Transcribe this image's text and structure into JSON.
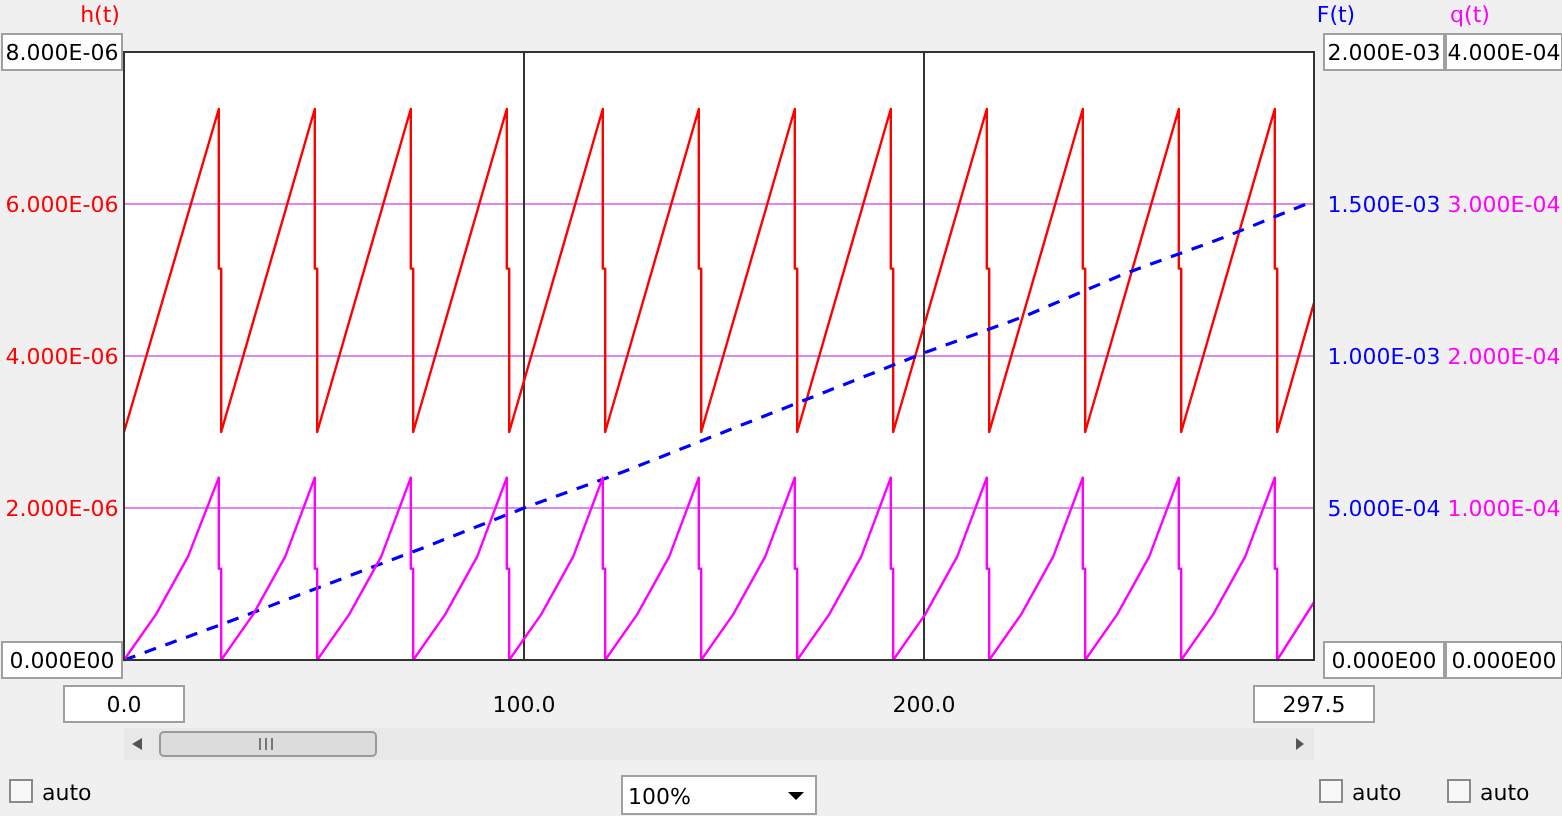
{
  "chart_data": {
    "type": "line",
    "ylabel": "h(t)",
    "y2label": "F(t)",
    "y3label": "q(t)",
    "xlim": [
      0,
      297.5
    ],
    "xticks": [
      {
        "value": 0,
        "label": "0.0"
      },
      {
        "value": 100,
        "label": "100.0"
      },
      {
        "value": 200,
        "label": "200.0"
      },
      {
        "value": 297.5,
        "label": "297.5"
      }
    ],
    "ylim": [
      0,
      8e-06
    ],
    "yticks": [
      {
        "value": 0,
        "label": "0.000E00"
      },
      {
        "value": 2e-06,
        "label": "2.000E-06"
      },
      {
        "value": 4e-06,
        "label": "4.000E-06"
      },
      {
        "value": 6e-06,
        "label": "6.000E-06"
      },
      {
        "value": 8e-06,
        "label": "8.000E-06"
      }
    ],
    "y2lim": [
      0,
      0.002
    ],
    "y2ticks": [
      {
        "value": 0,
        "label": "0.000E00"
      },
      {
        "value": 0.0005,
        "label": "5.000E-04"
      },
      {
        "value": 0.001,
        "label": "1.000E-03"
      },
      {
        "value": 0.0015,
        "label": "1.500E-03"
      },
      {
        "value": 0.002,
        "label": "2.000E-03"
      }
    ],
    "y3lim": [
      0,
      0.0004
    ],
    "y3ticks": [
      {
        "value": 0,
        "label": "0.000E00"
      },
      {
        "value": 0.0001,
        "label": "1.000E-04"
      },
      {
        "value": 0.0002,
        "label": "2.000E-04"
      },
      {
        "value": 0.0003,
        "label": "3.000E-04"
      },
      {
        "value": 0.0004,
        "label": "4.000E-04"
      }
    ],
    "grid": true,
    "annotations": [
      "auto",
      "100%",
      "auto",
      "auto"
    ],
    "series": [
      {
        "color": "#ff0000",
        "axis": "y",
        "line_style": "solid",
        "x": [
          0,
          23.7,
          23.7,
          24.3,
          24.3,
          47.7,
          47.7,
          48.3,
          48.3,
          71.7,
          71.7,
          72.3,
          72.3,
          95.7,
          95.7,
          96.3,
          96.3,
          119.7,
          119.7,
          120.3,
          120.3,
          143.7,
          143.7,
          144.3,
          144.3,
          167.7,
          167.7,
          168.3,
          168.3,
          191.7,
          191.7,
          192.3,
          192.3,
          215.7,
          215.7,
          216.3,
          216.3,
          239.7,
          239.7,
          240.3,
          240.3,
          263.7,
          263.7,
          264.3,
          264.3,
          287.7,
          287.7,
          288.3,
          288.3,
          297.5
        ],
        "values": [
          3e-06,
          7.25e-06,
          5.15e-06,
          5.15e-06,
          3e-06,
          7.25e-06,
          5.15e-06,
          5.15e-06,
          3e-06,
          7.25e-06,
          5.15e-06,
          5.15e-06,
          3e-06,
          7.25e-06,
          5.15e-06,
          5.15e-06,
          3e-06,
          7.25e-06,
          5.15e-06,
          5.15e-06,
          3e-06,
          7.25e-06,
          5.15e-06,
          5.15e-06,
          3e-06,
          7.25e-06,
          5.15e-06,
          5.15e-06,
          3e-06,
          7.25e-06,
          5.15e-06,
          5.15e-06,
          3e-06,
          7.25e-06,
          5.15e-06,
          5.15e-06,
          3e-06,
          7.25e-06,
          5.15e-06,
          5.15e-06,
          3e-06,
          7.25e-06,
          5.15e-06,
          5.15e-06,
          3e-06,
          7.25e-06,
          5.15e-06,
          5.15e-06,
          3e-06,
          4.7e-06
        ]
      },
      {
        "color": "#0000ff",
        "axis": "y2",
        "line_style": "dashed",
        "x": [
          0,
          25,
          50,
          75,
          100,
          125,
          150,
          175,
          200,
          225,
          250,
          275,
          297.5
        ],
        "values": [
          0,
          0.00012,
          0.000245,
          0.00037,
          0.0005,
          0.00062,
          0.00075,
          0.00088,
          0.00101,
          0.00113,
          0.00127,
          0.00139,
          0.00151
        ]
      },
      {
        "color": "#ff00ff",
        "axis": "y3",
        "line_style": "solid",
        "x": [
          0,
          8,
          16,
          23.7,
          23.7,
          24.3,
          24.3,
          32.3,
          40.3,
          47.7,
          47.7,
          48.3,
          48.3,
          56.3,
          64.3,
          71.7,
          71.7,
          72.3,
          72.3,
          80.3,
          88.3,
          95.7,
          95.7,
          96.3,
          96.3,
          104.3,
          112.3,
          119.7,
          119.7,
          120.3,
          120.3,
          128.3,
          136.3,
          143.7,
          143.7,
          144.3,
          144.3,
          152.3,
          160.3,
          167.7,
          167.7,
          168.3,
          168.3,
          176.3,
          184.3,
          191.7,
          191.7,
          192.3,
          192.3,
          200.3,
          208.3,
          215.7,
          215.7,
          216.3,
          216.3,
          224.3,
          232.3,
          239.7,
          239.7,
          240.3,
          240.3,
          248.3,
          256.3,
          263.7,
          263.7,
          264.3,
          264.3,
          272.3,
          280.3,
          287.7,
          287.7,
          288.3,
          288.3,
          297.5
        ],
        "values": [
          0,
          3e-05,
          6.8e-05,
          0.00012,
          6e-05,
          6e-05,
          0,
          3e-05,
          6.8e-05,
          0.00012,
          6e-05,
          6e-05,
          0,
          3e-05,
          6.8e-05,
          0.00012,
          6e-05,
          6e-05,
          0,
          3e-05,
          6.8e-05,
          0.00012,
          6e-05,
          6e-05,
          0,
          3e-05,
          6.8e-05,
          0.00012,
          6e-05,
          6e-05,
          0,
          3e-05,
          6.8e-05,
          0.00012,
          6e-05,
          6e-05,
          0,
          3e-05,
          6.8e-05,
          0.00012,
          6e-05,
          6e-05,
          0,
          3e-05,
          6.8e-05,
          0.00012,
          6e-05,
          6e-05,
          0,
          3e-05,
          6.8e-05,
          0.00012,
          6e-05,
          6e-05,
          0,
          3e-05,
          6.8e-05,
          0.00012,
          6e-05,
          6e-05,
          0,
          3e-05,
          6.8e-05,
          0.00012,
          6e-05,
          6e-05,
          0,
          3e-05,
          6.8e-05,
          0.00012,
          6e-05,
          6e-05,
          0,
          3.8e-05
        ]
      }
    ]
  }
}
